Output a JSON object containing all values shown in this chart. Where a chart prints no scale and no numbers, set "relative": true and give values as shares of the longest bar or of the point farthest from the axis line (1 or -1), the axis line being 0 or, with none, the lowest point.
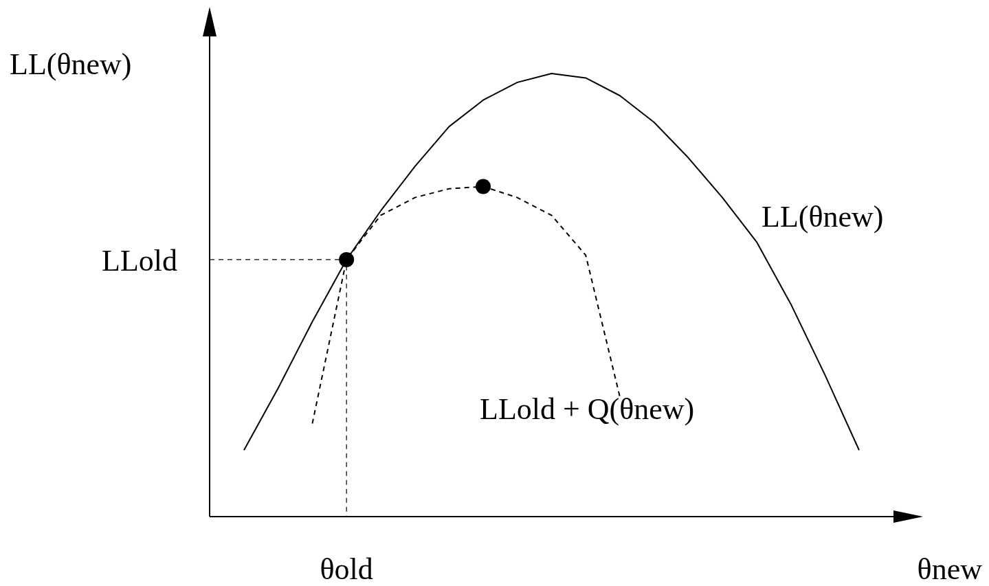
{
  "chart_data": {
    "type": "line",
    "relative": true,
    "xlabel": "θnew",
    "ylabel": "LL(θnew)",
    "categories": [
      null,
      null,
      null,
      null,
      null,
      null,
      null,
      null,
      null,
      null,
      null,
      null,
      null,
      null,
      null,
      null,
      null,
      null,
      null
    ],
    "annotations": [
      "θold"
    ],
    "series": [
      {
        "name": "LL(θnew)",
        "color": "#000000",
        "line_style": "solid",
        "values": [
          0.15,
          0.29,
          0.44,
          0.58,
          0.69,
          0.79,
          0.88,
          0.94,
          0.98,
          1,
          0.99,
          0.95,
          0.89,
          0.81,
          0.72,
          0.62,
          0.48,
          0.32,
          0.15
        ]
      },
      {
        "name": "LLold + Q(θnew)",
        "color": "#000000",
        "line_style": "dashed",
        "values": [
          null,
          null,
          0.21,
          0.58,
          0.68,
          0.72,
          0.74,
          0.745,
          0.72,
          0.68,
          0.59,
          0.27,
          null,
          null,
          null,
          null,
          null,
          null,
          null
        ]
      }
    ],
    "ref_lines": [
      {
        "axis": "y",
        "value": 0.58,
        "label": "LLold",
        "color": "#000000",
        "line_style": "dashed"
      }
    ]
  }
}
